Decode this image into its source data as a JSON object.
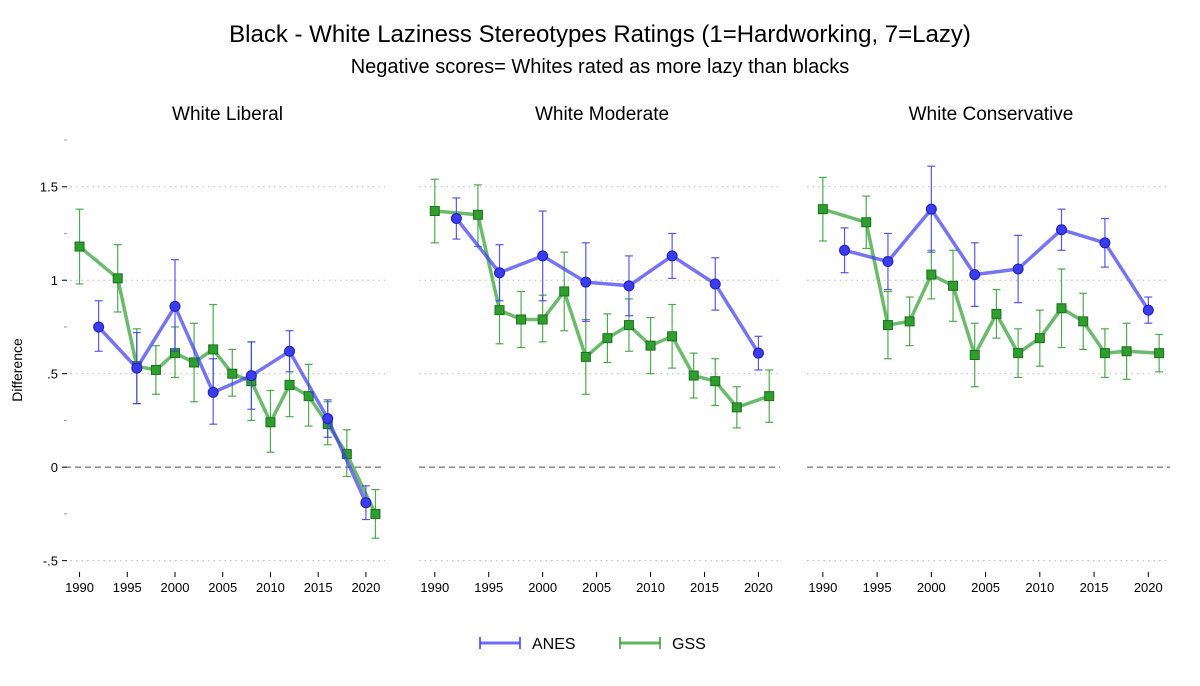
{
  "chart_data": {
    "type": "line",
    "title": "Black - White Laziness Stereotypes Ratings (1=Hardworking, 7=Lazy)",
    "subtitle": "Negative scores= Whites rated as more lazy than blacks",
    "ylabel": "Difference",
    "ylim": [
      -0.55,
      1.75
    ],
    "xlim": [
      1989,
      2022
    ],
    "yticks": [
      -0.5,
      0,
      0.5,
      1,
      1.5
    ],
    "ytick_labels": [
      "-.5",
      "0",
      ".5",
      "1",
      "1.5"
    ],
    "xticks": [
      1990,
      1995,
      2000,
      2005,
      2010,
      2015,
      2020
    ],
    "xtick_labels": [
      "1990",
      "1995",
      "2000",
      "2005",
      "2010",
      "2015",
      "2020"
    ],
    "grid": "horizontal dotted",
    "reference_line": 0,
    "legend_position": "bottom",
    "colors": {
      "ANES": "#3b3bef",
      "GSS": "#2e9e2e"
    },
    "legend": [
      {
        "name": "ANES",
        "color": "#3b3bef"
      },
      {
        "name": "GSS",
        "color": "#2e9e2e"
      }
    ],
    "panels": [
      {
        "title": "White Liberal",
        "series": [
          {
            "name": "ANES",
            "x": [
              1992,
              1996,
              2000,
              2004,
              2008,
              2012,
              2016,
              2020
            ],
            "y": [
              0.75,
              0.53,
              0.86,
              0.4,
              0.49,
              0.62,
              0.26,
              -0.19
            ],
            "lo": [
              0.62,
              0.34,
              0.62,
              0.23,
              0.31,
              0.51,
              0.16,
              -0.28
            ],
            "hi": [
              0.89,
              0.72,
              1.11,
              0.58,
              0.67,
              0.73,
              0.36,
              -0.1
            ]
          },
          {
            "name": "GSS",
            "x": [
              1990,
              1994,
              1996,
              1998,
              2000,
              2002,
              2004,
              2006,
              2008,
              2010,
              2012,
              2014,
              2016,
              2018,
              2021
            ],
            "y": [
              1.18,
              1.01,
              0.54,
              0.52,
              0.61,
              0.56,
              0.63,
              0.5,
              0.46,
              0.24,
              0.44,
              0.38,
              0.23,
              0.07,
              -0.25
            ],
            "lo": [
              0.98,
              0.83,
              0.34,
              0.39,
              0.48,
              0.35,
              0.39,
              0.38,
              0.25,
              0.08,
              0.27,
              0.22,
              0.12,
              -0.05,
              -0.38
            ],
            "hi": [
              1.38,
              1.19,
              0.74,
              0.65,
              0.75,
              0.77,
              0.87,
              0.63,
              0.67,
              0.41,
              0.61,
              0.55,
              0.35,
              0.2,
              -0.12
            ]
          }
        ]
      },
      {
        "title": "White Moderate",
        "series": [
          {
            "name": "ANES",
            "x": [
              1992,
              1996,
              2000,
              2004,
              2008,
              2012,
              2016,
              2020
            ],
            "y": [
              1.33,
              1.04,
              1.13,
              0.99,
              0.97,
              1.13,
              0.98,
              0.61
            ],
            "lo": [
              1.22,
              0.89,
              0.89,
              0.78,
              0.81,
              1.01,
              0.84,
              0.52
            ],
            "hi": [
              1.44,
              1.19,
              1.37,
              1.2,
              1.13,
              1.25,
              1.12,
              0.7
            ]
          },
          {
            "name": "GSS",
            "x": [
              1990,
              1994,
              1996,
              1998,
              2000,
              2002,
              2004,
              2006,
              2008,
              2010,
              2012,
              2014,
              2016,
              2018,
              2021
            ],
            "y": [
              1.37,
              1.35,
              0.84,
              0.79,
              0.79,
              0.94,
              0.59,
              0.69,
              0.76,
              0.65,
              0.7,
              0.49,
              0.46,
              0.32,
              0.38
            ],
            "lo": [
              1.2,
              1.18,
              0.66,
              0.64,
              0.67,
              0.73,
              0.39,
              0.56,
              0.62,
              0.5,
              0.53,
              0.37,
              0.33,
              0.21,
              0.24
            ],
            "hi": [
              1.54,
              1.51,
              1.02,
              0.94,
              0.92,
              1.15,
              0.79,
              0.82,
              0.9,
              0.8,
              0.87,
              0.61,
              0.58,
              0.43,
              0.52
            ]
          }
        ]
      },
      {
        "title": "White Conservative",
        "series": [
          {
            "name": "ANES",
            "x": [
              1992,
              1996,
              2000,
              2004,
              2008,
              2012,
              2016,
              2020
            ],
            "y": [
              1.16,
              1.1,
              1.38,
              1.03,
              1.06,
              1.27,
              1.2,
              0.84
            ],
            "lo": [
              1.04,
              0.95,
              1.15,
              0.86,
              0.88,
              1.16,
              1.07,
              0.77
            ],
            "hi": [
              1.28,
              1.25,
              1.61,
              1.2,
              1.24,
              1.38,
              1.33,
              0.91
            ]
          },
          {
            "name": "GSS",
            "x": [
              1990,
              1994,
              1996,
              1998,
              2000,
              2002,
              2004,
              2006,
              2008,
              2010,
              2012,
              2014,
              2016,
              2018,
              2021
            ],
            "y": [
              1.38,
              1.31,
              0.76,
              0.78,
              1.03,
              0.97,
              0.6,
              0.82,
              0.61,
              0.69,
              0.85,
              0.78,
              0.61,
              0.62,
              0.61
            ],
            "lo": [
              1.21,
              1.17,
              0.58,
              0.65,
              0.9,
              0.78,
              0.43,
              0.69,
              0.48,
              0.54,
              0.64,
              0.63,
              0.48,
              0.47,
              0.51
            ],
            "hi": [
              1.55,
              1.45,
              0.94,
              0.91,
              1.16,
              1.16,
              0.77,
              0.95,
              0.74,
              0.84,
              1.06,
              0.93,
              0.74,
              0.77,
              0.71
            ]
          }
        ]
      }
    ]
  }
}
